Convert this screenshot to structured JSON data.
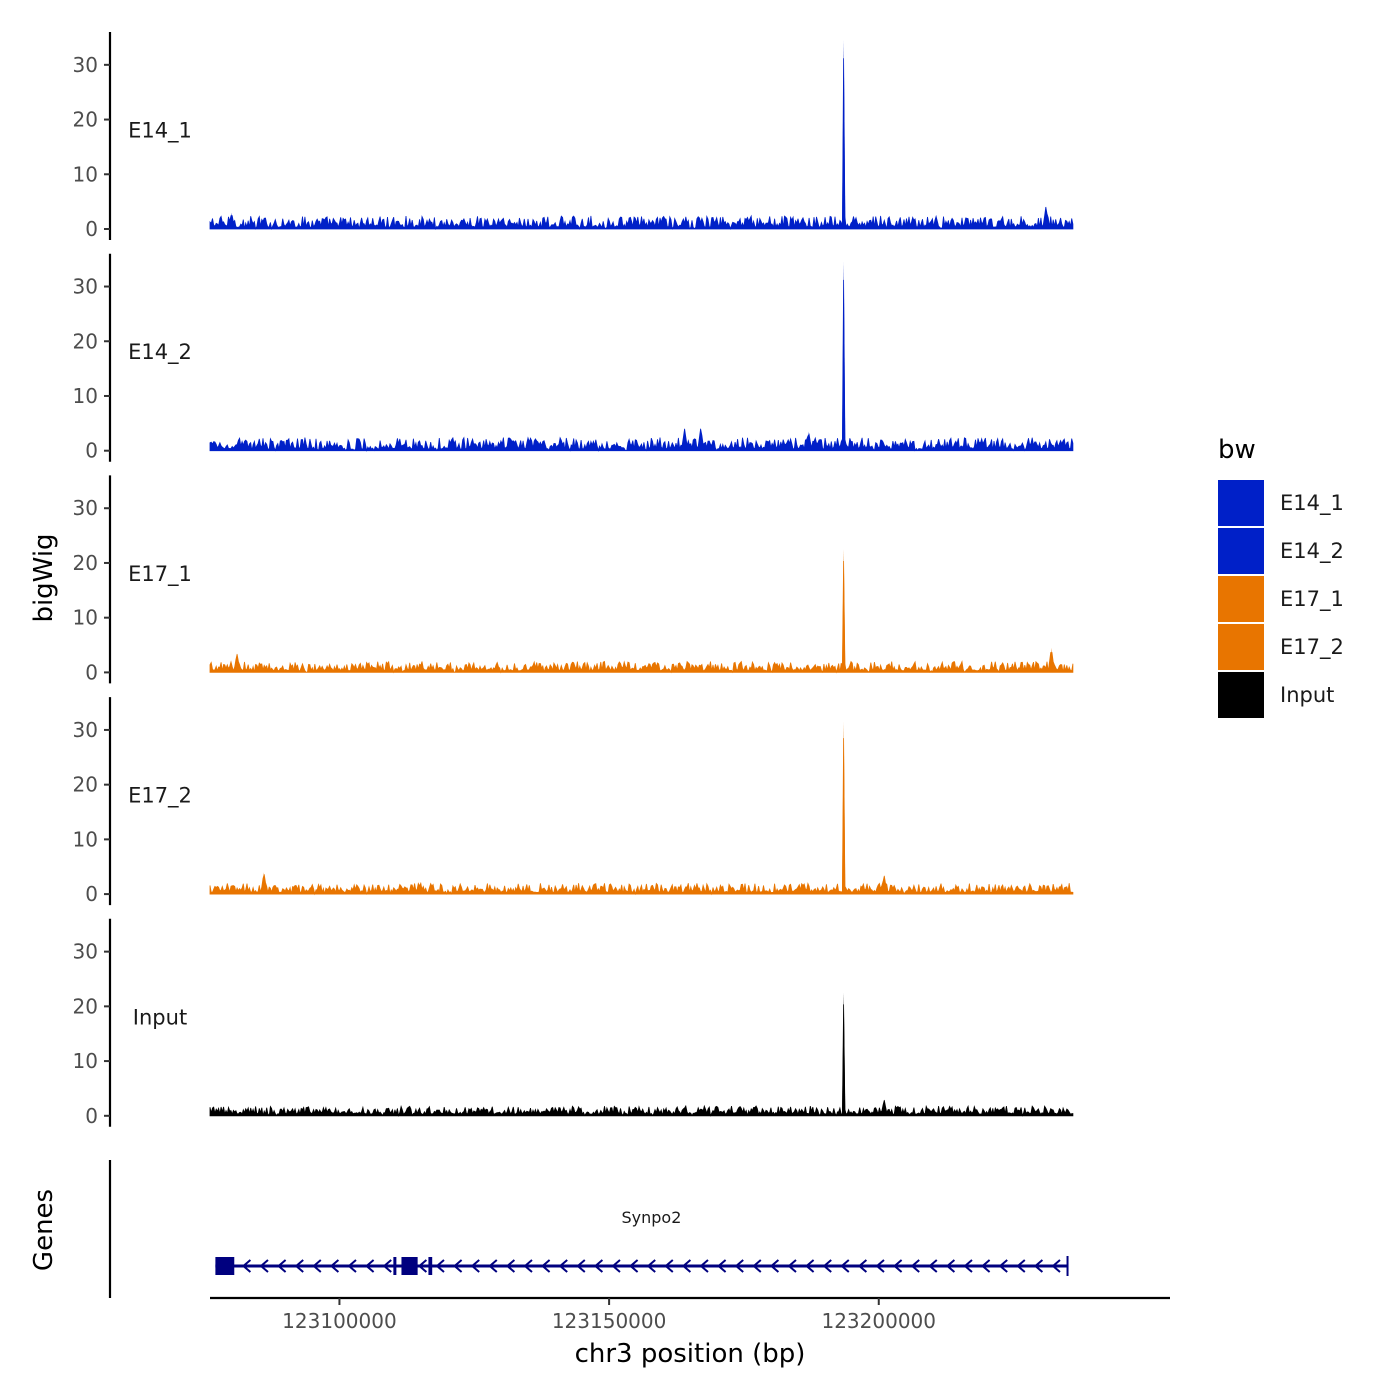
{
  "chart_data": {
    "type": "area",
    "x_axis": {
      "title": "chr3 position (bp)",
      "range": [
        123076000,
        123254000
      ],
      "data_range": [
        123076000,
        123236000
      ],
      "ticks": [
        123100000,
        123150000,
        123200000
      ],
      "tick_labels": [
        "123100000",
        "123150000",
        "123200000"
      ]
    },
    "y_axis": {
      "title": "bigWig",
      "range": [
        0,
        36
      ],
      "ticks": [
        0,
        10,
        20,
        30
      ],
      "tick_labels": [
        "0",
        "10",
        "20",
        "30"
      ]
    },
    "series": [
      {
        "name": "E14_1",
        "color": "#0020c8",
        "baseline_range": [
          0.3,
          2.4
        ],
        "peaks": [
          {
            "x": 123193500,
            "y": 34.5
          },
          {
            "x": 123231000,
            "y": 4.2
          },
          {
            "x": 123080000,
            "y": 3.0
          }
        ]
      },
      {
        "name": "E14_2",
        "color": "#0020c8",
        "baseline_range": [
          0.3,
          2.4
        ],
        "peaks": [
          {
            "x": 123193500,
            "y": 34.5
          },
          {
            "x": 123164000,
            "y": 4.0
          },
          {
            "x": 123167000,
            "y": 4.2
          },
          {
            "x": 123187000,
            "y": 3.5
          }
        ]
      },
      {
        "name": "E17_1",
        "color": "#e87500",
        "baseline_range": [
          0.3,
          2.0
        ],
        "peaks": [
          {
            "x": 123193500,
            "y": 22.5
          },
          {
            "x": 123081000,
            "y": 3.5
          },
          {
            "x": 123232000,
            "y": 4.5
          }
        ]
      },
      {
        "name": "E17_2",
        "color": "#e87500",
        "baseline_range": [
          0.3,
          2.0
        ],
        "peaks": [
          {
            "x": 123193500,
            "y": 31.5
          },
          {
            "x": 123086000,
            "y": 4.0
          },
          {
            "x": 123201000,
            "y": 3.5
          }
        ]
      },
      {
        "name": "Input",
        "color": "#000000",
        "baseline_range": [
          0.3,
          1.8
        ],
        "peaks": [
          {
            "x": 123193500,
            "y": 22.5
          },
          {
            "x": 123201000,
            "y": 3.0
          }
        ]
      }
    ],
    "genes_track": {
      "title": "Genes",
      "gene": {
        "name": "Synpo2",
        "color": "#00007f",
        "start": 123077000,
        "end": 123235000,
        "strand": "-",
        "exons": [
          {
            "start": 123077000,
            "end": 123080500
          },
          {
            "start": 123110000,
            "end": 123110500
          },
          {
            "start": 123111500,
            "end": 123114500
          },
          {
            "start": 123116500,
            "end": 123117200
          }
        ]
      }
    },
    "legend": {
      "title": "bw",
      "placement": "right",
      "entries": [
        {
          "label": "E14_1",
          "color": "#0020c8"
        },
        {
          "label": "E14_2",
          "color": "#0020c8"
        },
        {
          "label": "E17_1",
          "color": "#e87500"
        },
        {
          "label": "E17_2",
          "color": "#e87500"
        },
        {
          "label": "Input",
          "color": "#000000"
        }
      ]
    }
  }
}
